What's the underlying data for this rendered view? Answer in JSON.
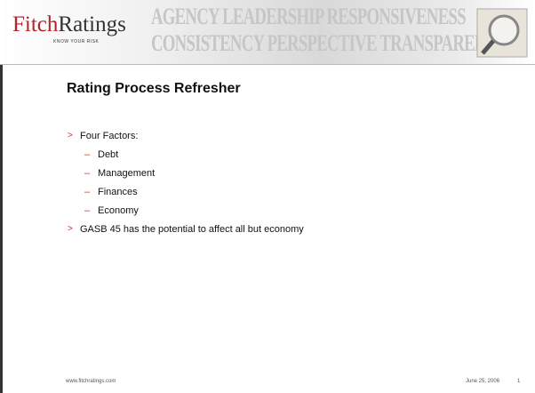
{
  "header": {
    "logo": {
      "name_first": "Fitch",
      "name_second": "Ratings",
      "tagline": "KNOW YOUR RISK"
    },
    "banner_lines": [
      "AGENCY LEADERSHIP RESPONSIVENESS",
      "CONSISTENCY PERSPECTIVE TRANSPARENCY"
    ]
  },
  "slide": {
    "title": "Rating Process Refresher",
    "bullets": [
      {
        "text": "Four Factors:",
        "sub_items": [
          "Debt",
          "Management",
          "Finances",
          "Economy"
        ]
      },
      {
        "text": "GASB 45 has the potential to affect all but economy",
        "sub_items": []
      }
    ]
  },
  "footer": {
    "url": "www.fitchratings.com",
    "date": "June 25, 2006",
    "page": 1
  }
}
